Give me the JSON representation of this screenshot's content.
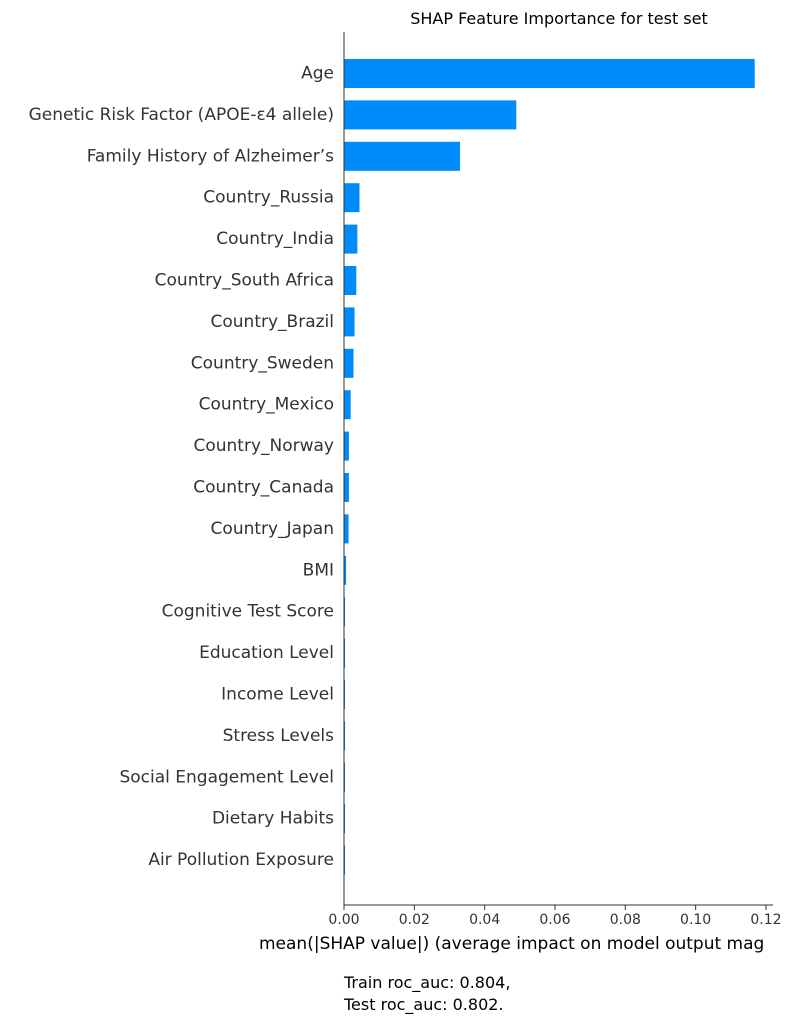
{
  "chart_data": {
    "type": "bar",
    "orientation": "horizontal",
    "title": "SHAP Feature Importance for test set",
    "xlabel": "mean(|SHAP value|) (average impact on model output mag",
    "ylabel": "",
    "xlim": [
      0,
      0.122
    ],
    "xticks": [
      0.0,
      0.02,
      0.04,
      0.06,
      0.08,
      0.1,
      0.12
    ],
    "xtick_labels": [
      "0.00",
      "0.02",
      "0.04",
      "0.06",
      "0.08",
      "0.10",
      "0.12"
    ],
    "grid": false,
    "bar_color": "#008bfb",
    "categories": [
      "Age",
      "Genetic Risk Factor (APOE-ε4 allele)",
      "Family History of Alzheimer’s",
      "Country_Russia",
      "Country_India",
      "Country_South Africa",
      "Country_Brazil",
      "Country_Sweden",
      "Country_Mexico",
      "Country_Norway",
      "Country_Canada",
      "Country_Japan",
      "BMI",
      "Cognitive Test Score",
      "Education Level",
      "Income Level",
      "Stress Levels",
      "Social Engagement Level",
      "Dietary Habits",
      "Air Pollution Exposure"
    ],
    "values": [
      0.1168,
      0.049,
      0.033,
      0.0044,
      0.0038,
      0.0035,
      0.003,
      0.0027,
      0.0019,
      0.0014,
      0.0014,
      0.0013,
      0.0006,
      0.0003,
      0.0003,
      0.0003,
      0.0003,
      0.0003,
      0.0003,
      0.0003
    ]
  },
  "metrics": {
    "train": "Train roc_auc: 0.804,",
    "test": "Test roc_auc: 0.802."
  }
}
